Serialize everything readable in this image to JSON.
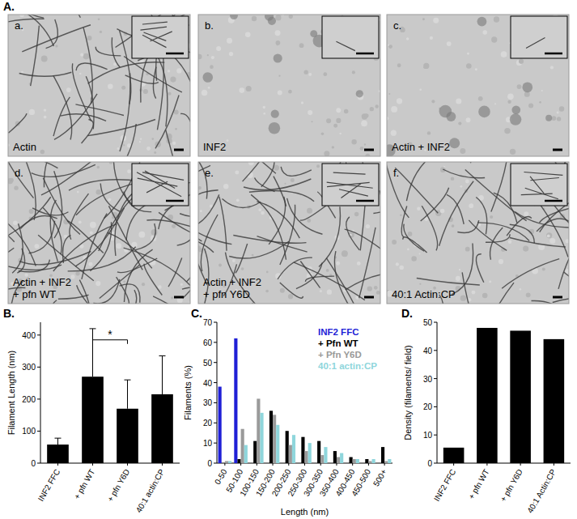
{
  "panel_labels": [
    "A.",
    "B.",
    "C.",
    "D."
  ],
  "micrographs": [
    {
      "letter": "a.",
      "caption": [
        "Actin"
      ]
    },
    {
      "letter": "b.",
      "caption": [
        "INF2"
      ]
    },
    {
      "letter": "c.",
      "caption": [
        "Actin + INF2"
      ]
    },
    {
      "letter": "d.",
      "caption": [
        "Actin + INF2",
        "+ pfn WT"
      ]
    },
    {
      "letter": "e.",
      "caption": [
        "Actin + INF2",
        "+ pfn Y6D"
      ]
    },
    {
      "letter": "f.",
      "caption": [
        "40:1 Actin:CP"
      ]
    }
  ],
  "chart_data": [
    {
      "type": "bar",
      "y_label": "Filament Length (nm)",
      "categories": [
        "INF2 FFC",
        "+ pfn WT",
        "+ pfn Y6D",
        "40:1 actin:CP"
      ],
      "values": [
        58,
        270,
        170,
        215
      ],
      "errors": [
        20,
        150,
        90,
        120
      ],
      "color": "#000000",
      "ylim": [
        0,
        440
      ],
      "yticks": [
        0,
        100,
        200,
        300,
        400
      ],
      "annotations": [
        {
          "text": "*",
          "from": 1,
          "to": 2,
          "y": 385
        }
      ]
    },
    {
      "type": "bar",
      "x_label": "Length (nm)",
      "y_label": "Filaments (%)",
      "categories": [
        "0-50",
        "50-100",
        "100-150",
        "150-200",
        "200-250",
        "250-300",
        "300-350",
        "350-400",
        "400-450",
        "450-500",
        "500+"
      ],
      "series": [
        {
          "name": "INF2 FFC",
          "color": "#1f1fd6",
          "values": [
            38,
            62,
            0,
            0,
            0,
            0,
            0,
            0,
            0,
            0,
            0
          ]
        },
        {
          "name": "+ Pfn WT",
          "color": "#000000",
          "values": [
            0,
            2,
            11,
            26,
            16,
            13,
            11,
            6,
            3,
            2,
            8
          ]
        },
        {
          "name": "+ Pfn Y6D",
          "color": "#9a9a9a",
          "values": [
            1,
            17,
            32,
            24,
            9,
            6,
            4,
            3,
            2,
            1,
            1
          ]
        },
        {
          "name": "40:1 actin:CP",
          "color": "#8fd6dc",
          "values": [
            1,
            9,
            25,
            19,
            14,
            10,
            8,
            5,
            2,
            2,
            2
          ]
        }
      ],
      "ylim": [
        0,
        70
      ],
      "yticks": [
        0,
        10,
        20,
        30,
        40,
        50,
        60,
        70
      ],
      "legend": "top-right"
    },
    {
      "type": "bar",
      "y_label": "Density (filaments/ field)",
      "categories": [
        "INF2 FFC",
        "+ pfn WT",
        "+ pfn Y6D",
        "40:1 Actin:CP"
      ],
      "values": [
        5.5,
        48,
        47,
        44
      ],
      "color": "#000000",
      "ylim": [
        0,
        50
      ],
      "yticks": [
        0,
        10,
        20,
        30,
        40,
        50
      ]
    }
  ]
}
